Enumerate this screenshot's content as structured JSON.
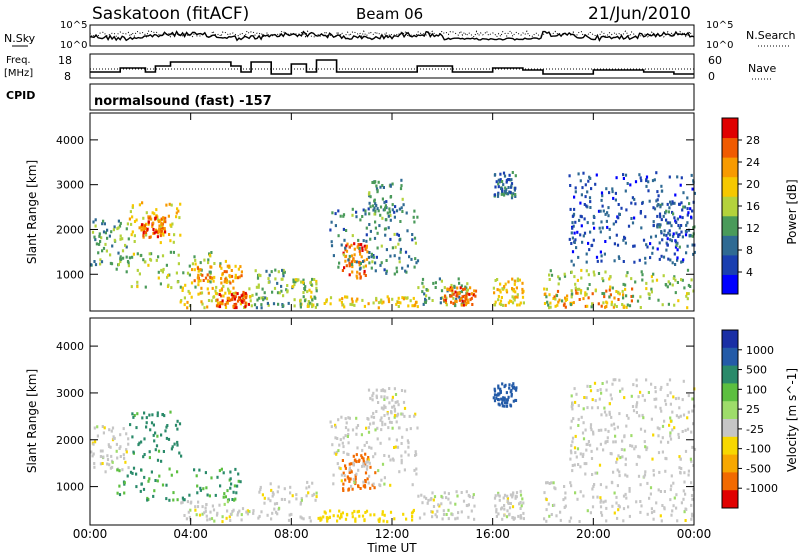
{
  "header": {
    "station": "Saskatoon (fitACF)",
    "beam": "Beam 06",
    "date": "21/Jun/2010"
  },
  "noise_panel": {
    "left_label": "N.Sky",
    "right_label": "N.Search",
    "left_ticks": [
      "10^5",
      "10^0"
    ],
    "right_ticks": [
      "10^5",
      "10^0"
    ]
  },
  "freq_panel": {
    "left_label_line1": "Freq.",
    "left_label_line2": "[MHz]",
    "right_label": "Nave",
    "left_ticks": [
      "18",
      "8"
    ],
    "right_ticks": [
      "60",
      "0"
    ]
  },
  "cpid": {
    "label": "CPID",
    "text": "normalsound (fast) -157"
  },
  "x_axis": {
    "title": "Time UT",
    "ticks": [
      "00:00",
      "04:00",
      "08:00",
      "12:00",
      "16:00",
      "20:00",
      "00:00"
    ],
    "tick_hours": [
      0,
      4,
      8,
      12,
      16,
      20,
      24
    ],
    "range": [
      0,
      24
    ]
  },
  "colors": {
    "power_scale": [
      "#0000ff",
      "#1a3fb0",
      "#2f6a93",
      "#4a9a5a",
      "#b4d23c",
      "#f5c800",
      "#f79a00",
      "#f05a00",
      "#e00000"
    ],
    "velocity_scale": [
      "#1a2fa5",
      "#245ba8",
      "#2a8a6a",
      "#5cbf40",
      "#9edc6a",
      "#c6c6c6",
      "#f7d800",
      "#f7a800",
      "#f26a00",
      "#e00000"
    ]
  },
  "chart_data": [
    {
      "type": "heatmap",
      "title": "",
      "xlabel": "",
      "ylabel": "Slant Range [km]",
      "y_ticks": [
        1000,
        2000,
        3000,
        4000
      ],
      "ylim": [
        180,
        4600
      ],
      "xlim": [
        0,
        24
      ],
      "colorbar": {
        "label": "Power [dB]",
        "ticks": [
          "4",
          "8",
          "12",
          "16",
          "20",
          "24",
          "28"
        ],
        "range": [
          0,
          30
        ]
      },
      "regions": [
        {
          "t": [
            0.0,
            1.6
          ],
          "r": [
            1200,
            2300
          ],
          "v": 12
        },
        {
          "t": [
            1.5,
            3.6
          ],
          "r": [
            1700,
            2600
          ],
          "v": 18
        },
        {
          "t": [
            2.0,
            3.0
          ],
          "r": [
            1800,
            2300
          ],
          "v": 24
        },
        {
          "t": [
            1.0,
            5.5
          ],
          "r": [
            700,
            1500
          ],
          "v": 14
        },
        {
          "t": [
            4.0,
            6.0
          ],
          "r": [
            800,
            1200
          ],
          "v": 22
        },
        {
          "t": [
            3.5,
            6.5
          ],
          "r": [
            250,
            700
          ],
          "v": 18
        },
        {
          "t": [
            5.0,
            6.3
          ],
          "r": [
            250,
            600
          ],
          "v": 26
        },
        {
          "t": [
            6.5,
            8.0
          ],
          "r": [
            250,
            1100
          ],
          "v": 12
        },
        {
          "t": [
            8.0,
            9.0
          ],
          "r": [
            250,
            900
          ],
          "v": 14
        },
        {
          "t": [
            9.0,
            13.0
          ],
          "r": [
            250,
            500
          ],
          "v": 18
        },
        {
          "t": [
            10.0,
            11.0
          ],
          "r": [
            900,
            1700
          ],
          "v": 24
        },
        {
          "t": [
            9.5,
            13.0
          ],
          "r": [
            1000,
            2500
          ],
          "v": 10
        },
        {
          "t": [
            11.0,
            12.5
          ],
          "r": [
            2200,
            3100
          ],
          "v": 10
        },
        {
          "t": [
            13.0,
            15.0
          ],
          "r": [
            300,
            900
          ],
          "v": 12
        },
        {
          "t": [
            14.0,
            15.3
          ],
          "r": [
            300,
            700
          ],
          "v": 24
        },
        {
          "t": [
            16.0,
            16.9
          ],
          "r": [
            2700,
            3300
          ],
          "v": 8
        },
        {
          "t": [
            16.0,
            17.2
          ],
          "r": [
            300,
            900
          ],
          "v": 18
        },
        {
          "t": [
            18.0,
            21.5
          ],
          "r": [
            250,
            700
          ],
          "v": 22
        },
        {
          "t": [
            18.0,
            24.0
          ],
          "r": [
            250,
            1100
          ],
          "v": 14
        },
        {
          "t": [
            19.0,
            24.0
          ],
          "r": [
            1200,
            3300
          ],
          "v": 6
        },
        {
          "t": [
            22.5,
            24.0
          ],
          "r": [
            1600,
            2600
          ],
          "v": 8
        }
      ]
    },
    {
      "type": "heatmap",
      "title": "",
      "xlabel": "Time UT",
      "ylabel": "Slant Range [km]",
      "y_ticks": [
        1000,
        2000,
        3000,
        4000
      ],
      "ylim": [
        180,
        4600
      ],
      "xlim": [
        0,
        24
      ],
      "colorbar": {
        "label": "Velocity [m s^-1]",
        "ticks": [
          "1000",
          "500",
          "100",
          "25",
          "-25",
          "-100",
          "-500",
          "-1000"
        ],
        "range": [
          -1000,
          1000
        ]
      },
      "regions": [
        {
          "t": [
            0.0,
            1.5
          ],
          "r": [
            1300,
            2300
          ],
          "v": 0
        },
        {
          "t": [
            1.5,
            3.6
          ],
          "r": [
            1500,
            2600
          ],
          "v": 120
        },
        {
          "t": [
            1.0,
            6.0
          ],
          "r": [
            700,
            1400
          ],
          "v": 110
        },
        {
          "t": [
            3.5,
            6.5
          ],
          "r": [
            250,
            700
          ],
          "v": 0
        },
        {
          "t": [
            6.5,
            9.0
          ],
          "r": [
            250,
            1100
          ],
          "v": 0
        },
        {
          "t": [
            9.0,
            13.0
          ],
          "r": [
            250,
            500
          ],
          "v": -60
        },
        {
          "t": [
            10.0,
            11.3
          ],
          "r": [
            900,
            1700
          ],
          "v": -450
        },
        {
          "t": [
            9.5,
            13.0
          ],
          "r": [
            1000,
            2600
          ],
          "v": 0
        },
        {
          "t": [
            11.0,
            12.5
          ],
          "r": [
            2200,
            3100
          ],
          "v": 0
        },
        {
          "t": [
            13.0,
            15.3
          ],
          "r": [
            300,
            900
          ],
          "v": 0
        },
        {
          "t": [
            16.0,
            16.9
          ],
          "r": [
            2700,
            3200
          ],
          "v": 250
        },
        {
          "t": [
            16.0,
            17.2
          ],
          "r": [
            300,
            900
          ],
          "v": 0
        },
        {
          "t": [
            18.0,
            24.0
          ],
          "r": [
            250,
            1100
          ],
          "v": 0
        },
        {
          "t": [
            19.0,
            24.0
          ],
          "r": [
            1200,
            3300
          ],
          "v": 0
        }
      ]
    }
  ]
}
